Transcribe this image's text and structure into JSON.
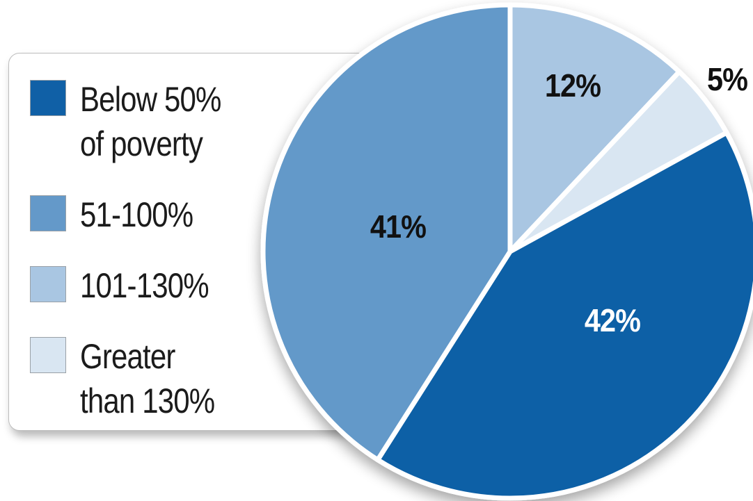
{
  "chart_data": {
    "type": "pie",
    "categories": [
      "Below 50%\nof poverty",
      "51-100%",
      "101-130%",
      "Greater\nthan 130%"
    ],
    "values": [
      42,
      41,
      12,
      5
    ],
    "data_labels": [
      "42%",
      "41%",
      "12%",
      "5%"
    ],
    "colors": [
      "#1060a6",
      "#6499c9",
      "#a9c6e2",
      "#d9e6f2"
    ],
    "label_colors": [
      "#ffffff",
      "#111111",
      "#111111",
      "#111111"
    ],
    "legend_placement": "left"
  }
}
